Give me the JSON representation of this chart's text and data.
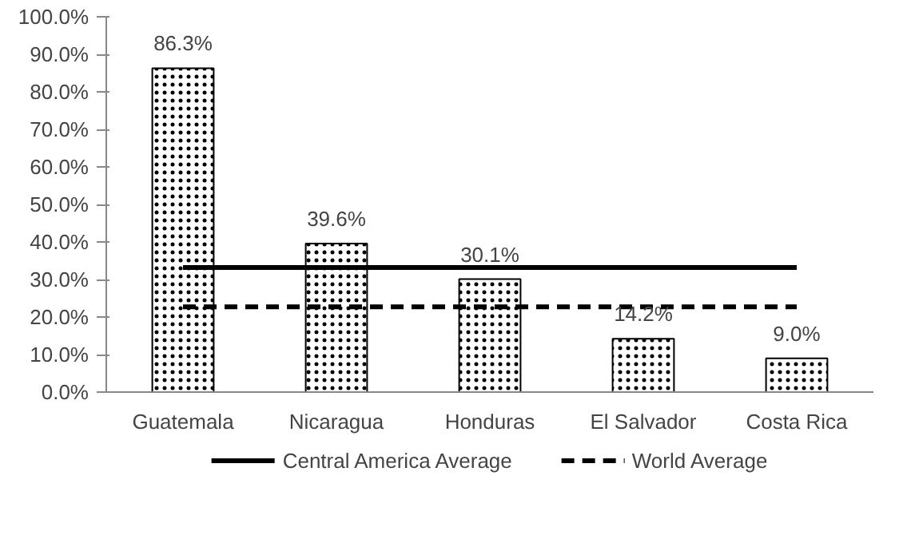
{
  "chart_data": {
    "type": "bar",
    "categories": [
      "Guatemala",
      "Nicaragua",
      "Honduras",
      "El Salvador",
      "Costa Rica"
    ],
    "series": [
      {
        "color": "#ffffff",
        "values": [
          86.3,
          39.6,
          30.1,
          14.2,
          9.0
        ],
        "value_labels": [
          "86.3%",
          "39.6%",
          "30.1%",
          "14.2%",
          "9.0%"
        ]
      },
      {
        "type": "line",
        "name": "Central America Average",
        "color": "#000000",
        "line_style": "solid",
        "values": [
          33.2,
          33.2,
          33.2,
          33.2,
          33.2
        ]
      },
      {
        "type": "line",
        "name": "World Average",
        "color": "#000000",
        "line_style": "dashed",
        "values": [
          22.7,
          22.7,
          22.7,
          22.7,
          22.7
        ]
      }
    ],
    "ylim": [
      0,
      100
    ],
    "yticks": [
      {
        "value": 0,
        "label": "0.0%"
      },
      {
        "value": 10,
        "label": "10.0%"
      },
      {
        "value": 20,
        "label": "20.0%"
      },
      {
        "value": 30,
        "label": "30.0%"
      },
      {
        "value": 40,
        "label": "40.0%"
      },
      {
        "value": 50,
        "label": "50.0%"
      },
      {
        "value": 60,
        "label": "60.0%"
      },
      {
        "value": 70,
        "label": "70.0%"
      },
      {
        "value": 80,
        "label": "80.0%"
      },
      {
        "value": 90,
        "label": "90.0%"
      },
      {
        "value": 100,
        "label": "100.0%"
      }
    ],
    "grid": false,
    "legend": "bottom",
    "marker": "none"
  }
}
